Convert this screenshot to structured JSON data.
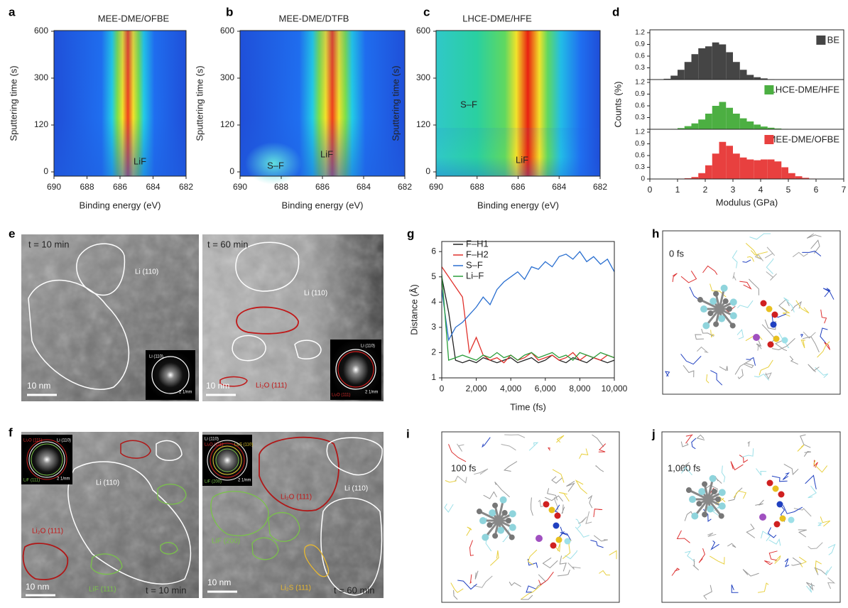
{
  "panel_labels": [
    "a",
    "b",
    "c",
    "d",
    "e",
    "f",
    "g",
    "h",
    "i",
    "j"
  ],
  "chart_data": [
    {
      "type": "contour",
      "title": "MEE-DME/OFBE",
      "xlabel": "Binding energy (eV)",
      "ylabel": "Sputtering time (s)",
      "xlim": [
        690,
        682
      ],
      "xticks": [
        690,
        688,
        686,
        684,
        682
      ],
      "ycategories": [
        "0",
        "120",
        "300",
        "600"
      ],
      "annotations": [
        "LiF"
      ]
    },
    {
      "type": "contour",
      "title": "MEE-DME/DTFB",
      "xlabel": "Binding energy (eV)",
      "ylabel": "Sputtering time (s)",
      "xlim": [
        690,
        682
      ],
      "xticks": [
        690,
        688,
        686,
        684,
        682
      ],
      "ycategories": [
        "0",
        "120",
        "300",
        "600"
      ],
      "annotations": [
        "S–F",
        "LiF"
      ]
    },
    {
      "type": "contour",
      "title": "LHCE-DME/HFE",
      "xlabel": "Binding energy (eV)",
      "ylabel": "Sputtering time (s)",
      "xlim": [
        690,
        682
      ],
      "xticks": [
        690,
        688,
        686,
        684,
        682
      ],
      "ycategories": [
        "0",
        "120",
        "300",
        "600"
      ],
      "annotations": [
        "S–F",
        "LiF"
      ]
    },
    {
      "type": "histogram",
      "xlabel": "Modulus (GPa)",
      "ylabel": "Counts (%)",
      "xlim": [
        0,
        7
      ],
      "xticks": [
        0,
        1,
        2,
        3,
        4,
        5,
        6,
        7
      ],
      "ylim": [
        0,
        1.2
      ],
      "yticks": [
        0,
        0.3,
        0.6,
        0.9,
        1.2
      ],
      "bins": [
        0,
        0.25,
        0.5,
        0.75,
        1,
        1.25,
        1.5,
        1.75,
        2,
        2.25,
        2.5,
        2.75,
        3,
        3.25,
        3.5,
        3.75,
        4,
        4.25,
        4.5,
        4.75,
        5,
        5.25,
        5.5,
        5.75,
        6,
        6.25,
        6.5,
        6.75,
        7
      ],
      "series": [
        {
          "name": "BE",
          "color": "#454545",
          "values": [
            0,
            0,
            0.02,
            0.1,
            0.25,
            0.45,
            0.65,
            0.8,
            0.85,
            0.95,
            0.9,
            0.7,
            0.45,
            0.25,
            0.12,
            0.06,
            0.03,
            0.01,
            0,
            0,
            0,
            0,
            0,
            0,
            0,
            0,
            0,
            0
          ]
        },
        {
          "name": "LHCE-DME/HFE",
          "color": "#4caf42",
          "values": [
            0,
            0,
            0,
            0.01,
            0.03,
            0.08,
            0.15,
            0.25,
            0.4,
            0.6,
            0.7,
            0.55,
            0.4,
            0.28,
            0.2,
            0.12,
            0.07,
            0.04,
            0.02,
            0.01,
            0,
            0,
            0,
            0,
            0,
            0,
            0,
            0
          ]
        },
        {
          "name": "MEE-DME/OFBE",
          "color": "#e8403f",
          "values": [
            0,
            0,
            0,
            0,
            0.01,
            0.02,
            0.05,
            0.15,
            0.35,
            0.65,
            0.95,
            0.85,
            0.65,
            0.55,
            0.5,
            0.48,
            0.5,
            0.5,
            0.45,
            0.3,
            0.15,
            0.07,
            0.03,
            0.01,
            0,
            0,
            0,
            0
          ]
        }
      ]
    },
    {
      "type": "line",
      "xlabel": "Time (fs)",
      "ylabel": "Distance (Å)",
      "legend": "upper left",
      "xlim": [
        0,
        10000
      ],
      "ylim": [
        1,
        6.4
      ],
      "xticks": [
        0,
        {
          "value": 2000,
          "label": "2,000"
        },
        {
          "value": 4000,
          "label": "4,000"
        },
        {
          "value": 6000,
          "label": "6,000"
        },
        {
          "value": 8000,
          "label": "8,000"
        },
        {
          "value": 10000,
          "label": "10,000"
        }
      ],
      "yticks": [
        1,
        2,
        3,
        4,
        5,
        6
      ],
      "x": [
        0,
        400,
        800,
        1200,
        1600,
        2000,
        2400,
        2800,
        3200,
        3600,
        4000,
        4400,
        4800,
        5200,
        5600,
        6000,
        6400,
        6800,
        7200,
        7600,
        8000,
        8400,
        8800,
        9200,
        9600,
        10000
      ],
      "series": [
        {
          "name": "F–H1",
          "color": "#222222",
          "values": [
            5.0,
            3.6,
            1.7,
            1.6,
            1.7,
            1.6,
            1.8,
            1.7,
            1.6,
            1.7,
            1.8,
            1.6,
            1.7,
            1.8,
            1.6,
            1.7,
            1.9,
            1.7,
            1.6,
            1.8,
            1.7,
            1.6,
            1.8,
            1.7,
            1.6,
            1.7
          ]
        },
        {
          "name": "F–H2",
          "color": "#e0302a",
          "values": [
            5.4,
            5.0,
            4.6,
            4.2,
            2.0,
            2.6,
            1.9,
            1.7,
            1.8,
            1.6,
            1.9,
            1.7,
            1.8,
            2.0,
            1.7,
            1.8,
            1.9,
            1.7,
            1.8,
            2.0,
            1.7,
            1.9,
            1.8,
            1.7,
            1.9,
            1.8
          ]
        },
        {
          "name": "S–F",
          "color": "#2a6fd0",
          "values": [
            4.5,
            2.5,
            3.0,
            3.2,
            3.5,
            3.8,
            4.2,
            3.9,
            4.5,
            4.8,
            5.0,
            5.2,
            4.9,
            5.4,
            5.3,
            5.6,
            5.4,
            5.8,
            5.9,
            5.7,
            6.0,
            5.6,
            5.8,
            5.5,
            5.7,
            5.2
          ]
        },
        {
          "name": "Li–F",
          "color": "#2a9d3a",
          "values": [
            5.1,
            1.7,
            1.8,
            1.9,
            1.8,
            1.7,
            1.9,
            1.8,
            2.0,
            1.8,
            1.9,
            1.7,
            1.9,
            2.0,
            1.8,
            1.9,
            2.0,
            1.8,
            1.9,
            1.7,
            2.0,
            1.9,
            1.8,
            2.0,
            1.9,
            1.8
          ]
        }
      ]
    }
  ],
  "images": {
    "e_left": {
      "time": "t = 10 min",
      "labels": [
        "Li (110)"
      ],
      "scale": "10 nm",
      "inset": [
        "Li (110)",
        "2 1/nm"
      ]
    },
    "e_right": {
      "time": "t = 60 min",
      "labels": [
        "Li (110)",
        "Li₂O (111)"
      ],
      "scale": "10 nm",
      "inset": [
        "Li (110)",
        "Li₂O (111)",
        "2 1/nm"
      ]
    },
    "f_left": {
      "time": "t = 10 min",
      "labels": [
        "Li (110)",
        "Li₂O (111)",
        "LiF (111)"
      ],
      "scale": "10 nm",
      "inset": [
        "Li₂O (111)",
        "Li (110)",
        "LiF (111)",
        "2 1/nm"
      ]
    },
    "f_right": {
      "time": "t = 60 min",
      "labels": [
        "Li₂O (111)",
        "Li (110)",
        "LiF (200)",
        "Li₂S (111)"
      ],
      "scale": "10 nm",
      "inset": [
        "Li (110)",
        "Li₂O (111)",
        "Li₂S (110)",
        "LiF (200)",
        "2 1/nm"
      ]
    },
    "h": {
      "time": "0 fs"
    },
    "i": {
      "time": "100 fs"
    },
    "j": {
      "time": "1,000 fs"
    }
  }
}
